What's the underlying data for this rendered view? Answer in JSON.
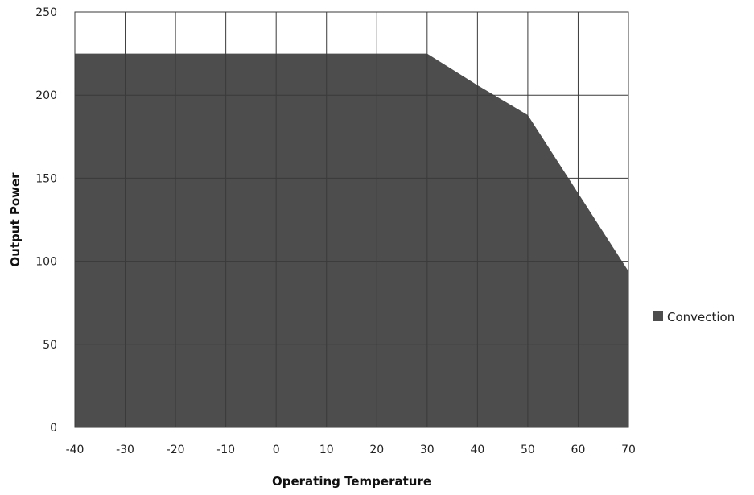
{
  "chart_data": {
    "type": "area",
    "title": "",
    "xlabel": "Operating Temperature",
    "ylabel": "Output Power",
    "x": [
      -40,
      -30,
      -20,
      -10,
      0,
      10,
      20,
      30,
      40,
      50,
      60,
      70
    ],
    "series": [
      {
        "name": "Convection",
        "values": [
          225,
          225,
          225,
          225,
          225,
          225,
          225,
          225,
          206,
          188,
          141,
          94
        ]
      }
    ],
    "xlim": [
      -40,
      70
    ],
    "ylim": [
      0,
      250
    ],
    "xticks": [
      "-40",
      "-30",
      "-20",
      "-10",
      "0",
      "10",
      "20",
      "30",
      "40",
      "50",
      "60",
      "70"
    ],
    "yticks": [
      "0",
      "50",
      "100",
      "150",
      "200",
      "250"
    ],
    "grid": true,
    "legend_position": "right",
    "colors": {
      "area": "#4d4d4d",
      "grid": "#3a3a3a",
      "plot_background": "#ffffff"
    }
  }
}
